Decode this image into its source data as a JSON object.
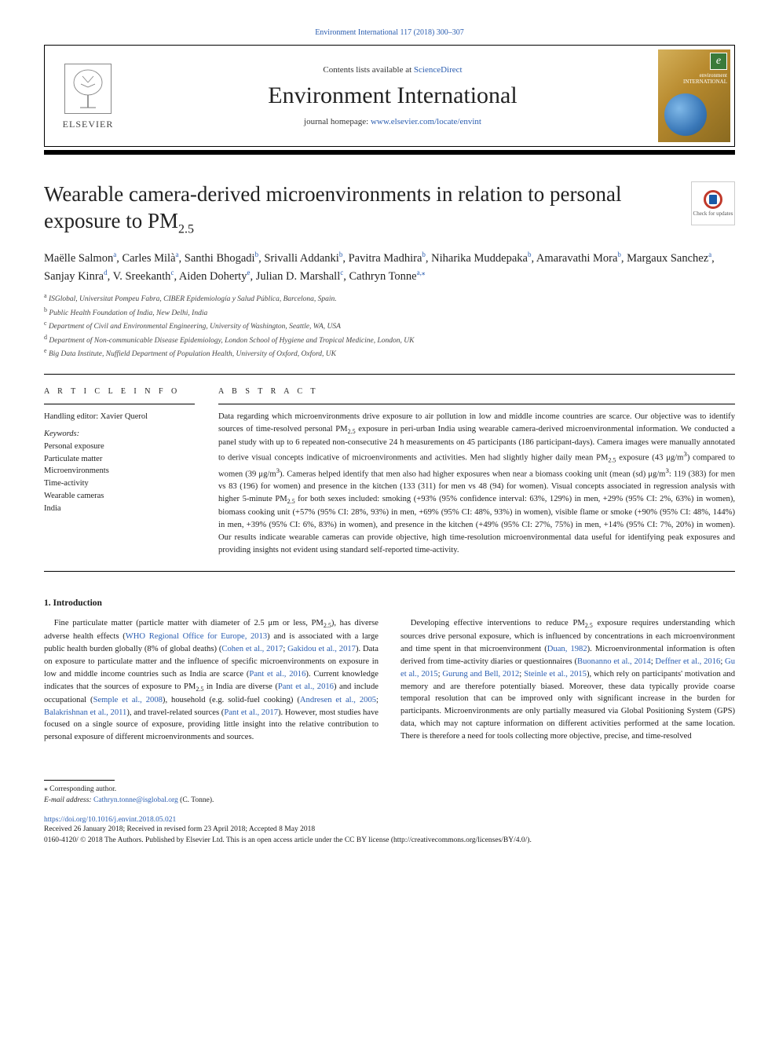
{
  "top_link": "Environment International 117 (2018) 300–307",
  "header": {
    "publisher": "ELSEVIER",
    "contents_prefix": "Contents lists available at ",
    "contents_link": "ScienceDirect",
    "journal_name": "Environment International",
    "homepage_prefix": "journal homepage: ",
    "homepage_link": "www.elsevier.com/locate/envint",
    "cover_brand": "environment",
    "cover_brand2": "INTERNATIONAL"
  },
  "updates_badge": "Check for updates",
  "title": "Wearable camera-derived microenvironments in relation to personal exposure to PM",
  "title_sub": "2.5",
  "authors_html": "Maëlle Salmon<a class='sup'>a</a>, Carles Milà<a class='sup'>a</a>, Santhi Bhogadi<a class='sup'>b</a>, Srivalli Addanki<a class='sup'>b</a>, Pavitra Madhira<a class='sup'>b</a>, Niharika Muddepaka<a class='sup'>b</a>, Amaravathi Mora<a class='sup'>b</a>, Margaux Sanchez<a class='sup'>a</a>, Sanjay Kinra<a class='sup'>d</a>, V. Sreekanth<a class='sup'>c</a>, Aiden Doherty<a class='sup'>e</a>, Julian D. Marshall<a class='sup'>c</a>, Cathryn Tonne<a class='sup'>a,</a><a class='sup'>⁎</a>",
  "affiliations": [
    {
      "sup": "a",
      "text": "ISGlobal, Universitat Pompeu Fabra, CIBER Epidemiología y Salud Pública, Barcelona, Spain."
    },
    {
      "sup": "b",
      "text": "Public Health Foundation of India, New Delhi, India"
    },
    {
      "sup": "c",
      "text": "Department of Civil and Environmental Engineering, University of Washington, Seattle, WA, USA"
    },
    {
      "sup": "d",
      "text": "Department of Non-communicable Disease Epidemiology, London School of Hygiene and Tropical Medicine, London, UK"
    },
    {
      "sup": "e",
      "text": "Big Data Institute, Nuffield Department of Population Health, University of Oxford, Oxford, UK"
    }
  ],
  "article_info": {
    "heading": "A R T I C L E  I N F O",
    "handling_editor": "Handling editor: Xavier Querol",
    "keywords_label": "Keywords:",
    "keywords": [
      "Personal exposure",
      "Particulate matter",
      "Microenvironments",
      "Time-activity",
      "Wearable cameras",
      "India"
    ]
  },
  "abstract": {
    "heading": "A B S T R A C T",
    "text": "Data regarding which microenvironments drive exposure to air pollution in low and middle income countries are scarce. Our objective was to identify sources of time-resolved personal PM2.5 exposure in peri-urban India using wearable camera-derived microenvironmental information. We conducted a panel study with up to 6 repeated non-consecutive 24 h measurements on 45 participants (186 participant-days). Camera images were manually annotated to derive visual concepts indicative of microenvironments and activities. Men had slightly higher daily mean PM2.5 exposure (43 μg/m3) compared to women (39 μg/m3). Cameras helped identify that men also had higher exposures when near a biomass cooking unit (mean (sd) μg/m3: 119 (383) for men vs 83 (196) for women) and presence in the kitchen (133 (311) for men vs 48 (94) for women). Visual concepts associated in regression analysis with higher 5-minute PM2.5 for both sexes included: smoking (+93% (95% confidence interval: 63%, 129%) in men, +29% (95% CI: 2%, 63%) in women), biomass cooking unit (+57% (95% CI: 28%, 93%) in men, +69% (95% CI: 48%, 93%) in women), visible flame or smoke (+90% (95% CI: 48%, 144%) in men, +39% (95% CI: 6%, 83%) in women), and presence in the kitchen (+49% (95% CI: 27%, 75%) in men, +14% (95% CI: 7%, 20%) in women). Our results indicate wearable cameras can provide objective, high time-resolution microenvironmental data useful for identifying peak exposures and providing insights not evident using standard self-reported time-activity."
  },
  "intro": {
    "heading": "1. Introduction",
    "para1": "Fine particulate matter (particle matter with diameter of 2.5 μm or less, PM<sub>2.5</sub>), has diverse adverse health effects (<a>WHO Regional Office for Europe, 2013</a>) and is associated with a large public health burden globally (8% of global deaths) (<a>Cohen et al., 2017</a>; <a>Gakidou et al., 2017</a>). Data on exposure to particulate matter and the influence of specific microenvironments on exposure in low and middle income countries such as India are scarce (<a>Pant et al., 2016</a>). Current knowledge indicates that the sources of exposure to PM<sub>2.5</sub> in India are diverse (<a>Pant et al., 2016</a>) and include occupational (<a>Semple et al., 2008</a>), household (e.g. solid-fuel cooking) (<a>Andresen et al., 2005</a>; <a>Balakrishnan et al., 2011</a>), and travel-related sources (<a>Pant et al., 2017</a>). However, most studies have focused on a single source of exposure, providing little insight into the relative contribution to personal exposure of different microenvironments and sources.",
    "para2": "Developing effective interventions to reduce PM<sub>2.5</sub> exposure requires understanding which sources drive personal exposure, which is influenced by concentrations in each microenvironment and time spent in that microenvironment (<a>Duan, 1982</a>). Microenvironmental information is often derived from time-activity diaries or questionnaires (<a>Buonanno et al., 2014</a>; <a>Deffner et al., 2016</a>; <a>Gu et al., 2015</a>; <a>Gurung and Bell, 2012</a>; <a>Steinle et al., 2015</a>), which rely on participants' motivation and memory and are therefore potentially biased. Moreover, these data typically provide coarse temporal resolution that can be improved only with significant increase in the burden for participants. Microenvironments are only partially measured via Global Positioning System (GPS) data, which may not capture information on different activities performed at the same location. There is therefore a need for tools collecting more objective, precise, and time-resolved"
  },
  "footer": {
    "corresponding": "⁎ Corresponding author.",
    "email_label": "E-mail address: ",
    "email": "Cathryn.tonne@isglobal.org",
    "email_suffix": " (C. Tonne).",
    "doi": "https://doi.org/10.1016/j.envint.2018.05.021",
    "received": "Received 26 January 2018; Received in revised form 23 April 2018; Accepted 8 May 2018",
    "copyright": "0160-4120/ © 2018 The Authors. Published by Elsevier Ltd. This is an open access article under the CC BY license (http://creativecommons.org/licenses/BY/4.0/)."
  },
  "colors": {
    "link": "#2a5db0",
    "text": "#1a1a1a",
    "rule": "#000000"
  }
}
